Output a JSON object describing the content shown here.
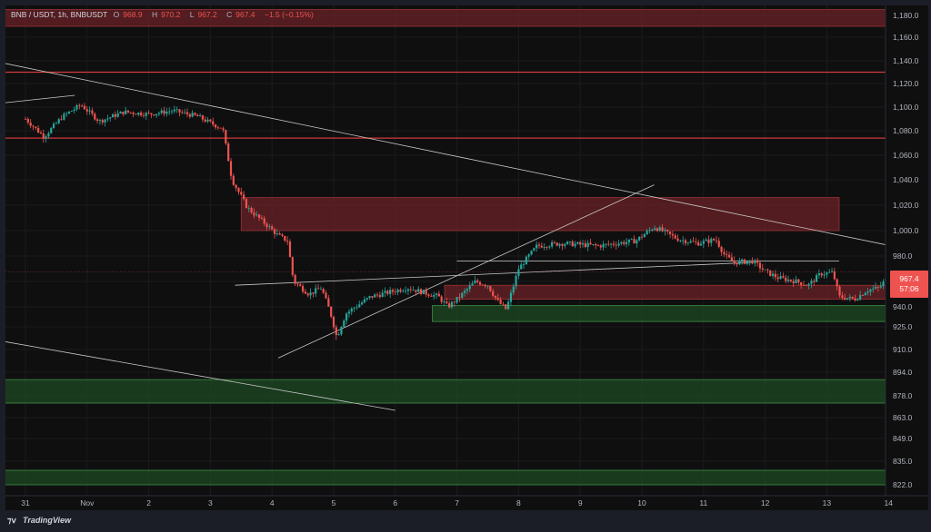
{
  "header": {
    "symbol": "BNB / USDT, 1h, BNBUSDT",
    "open_label": "O",
    "open": "968.9",
    "high_label": "H",
    "high": "970.2",
    "low_label": "L",
    "low": "967.2",
    "close_label": "C",
    "close": "967.4",
    "change": "−1.5 (−0.15%)"
  },
  "price_badge": {
    "price": "967.4",
    "countdown": "57:06"
  },
  "footer": {
    "brand": "TradingView"
  },
  "colors": {
    "background": "#0f0f10",
    "up": "#26a69a",
    "down": "#ef5350",
    "supply_zone": "#6b2226",
    "demand_zone": "#1f4a22",
    "red_line": "#d23a3a",
    "trendline": "#c8c8c8"
  },
  "chart_data": {
    "type": "candlestick",
    "timeframe": "1h",
    "x_ticks": [
      "31",
      "Nov",
      "2",
      "3",
      "4",
      "5",
      "6",
      "7",
      "8",
      "9",
      "10",
      "11",
      "12",
      "13",
      "14"
    ],
    "y_ticks": [
      "1,180.0",
      "1,160.0",
      "1,140.0",
      "1,120.0",
      "1,100.0",
      "1,080.0",
      "1,060.0",
      "1,040.0",
      "1,020.0",
      "1,000.0",
      "980.0",
      "960.0",
      "940.0",
      "925.0",
      "910.0",
      "894.0",
      "878.0",
      "863.0",
      "849.0",
      "835.0",
      "822.0"
    ],
    "last_price": 967.4,
    "price_path": [
      {
        "x": 31.0,
        "y": 1090
      },
      {
        "x": 31.3,
        "y": 1075
      },
      {
        "x": 31.6,
        "y": 1092
      },
      {
        "x": 31.9,
        "y": 1102
      },
      {
        "x": 32.2,
        "y": 1088
      },
      {
        "x": 32.6,
        "y": 1096
      },
      {
        "x": 33.0,
        "y": 1094
      },
      {
        "x": 33.4,
        "y": 1097
      },
      {
        "x": 33.8,
        "y": 1092
      },
      {
        "x": 34.1,
        "y": 1084
      },
      {
        "x": 34.2,
        "y": 1082
      },
      {
        "x": 34.35,
        "y": 1040
      },
      {
        "x": 34.6,
        "y": 1018
      },
      {
        "x": 34.9,
        "y": 1005
      },
      {
        "x": 35.1,
        "y": 996
      },
      {
        "x": 35.25,
        "y": 992
      },
      {
        "x": 35.35,
        "y": 960
      },
      {
        "x": 35.6,
        "y": 950
      },
      {
        "x": 35.8,
        "y": 955
      },
      {
        "x": 35.95,
        "y": 935
      },
      {
        "x": 36.05,
        "y": 918
      },
      {
        "x": 36.2,
        "y": 935
      },
      {
        "x": 36.6,
        "y": 948
      },
      {
        "x": 37.2,
        "y": 955
      },
      {
        "x": 37.7,
        "y": 948
      },
      {
        "x": 37.85,
        "y": 940
      },
      {
        "x": 38.0,
        "y": 946
      },
      {
        "x": 38.3,
        "y": 960
      },
      {
        "x": 38.5,
        "y": 957
      },
      {
        "x": 38.65,
        "y": 945
      },
      {
        "x": 38.8,
        "y": 938
      },
      {
        "x": 39.0,
        "y": 970
      },
      {
        "x": 39.3,
        "y": 988
      },
      {
        "x": 39.7,
        "y": 990
      },
      {
        "x": 40.3,
        "y": 988
      },
      {
        "x": 40.9,
        "y": 992
      },
      {
        "x": 41.2,
        "y": 1003
      },
      {
        "x": 41.6,
        "y": 993
      },
      {
        "x": 41.9,
        "y": 990
      },
      {
        "x": 42.2,
        "y": 993
      },
      {
        "x": 42.35,
        "y": 980
      },
      {
        "x": 42.5,
        "y": 975
      },
      {
        "x": 42.8,
        "y": 976
      },
      {
        "x": 43.0,
        "y": 968
      },
      {
        "x": 43.2,
        "y": 963
      },
      {
        "x": 43.5,
        "y": 960
      },
      {
        "x": 43.7,
        "y": 957
      },
      {
        "x": 43.9,
        "y": 966
      },
      {
        "x": 44.1,
        "y": 967
      },
      {
        "x": 44.2,
        "y": 948
      },
      {
        "x": 44.45,
        "y": 946
      },
      {
        "x": 44.65,
        "y": 953
      },
      {
        "x": 44.85,
        "y": 955
      },
      {
        "x": 45.0,
        "y": 964
      },
      {
        "x": 45.1,
        "y": 967.4
      }
    ],
    "zones": [
      {
        "kind": "supply",
        "y1": 1170,
        "y2": 1185,
        "x1": 30.0,
        "x2": 45.8
      },
      {
        "kind": "supply",
        "y1": 1000,
        "y2": 1026,
        "x1": 34.5,
        "x2": 44.2
      },
      {
        "kind": "supply",
        "y1": 946,
        "y2": 957,
        "x1": 37.8,
        "x2": 45.8
      },
      {
        "kind": "demand",
        "y1": 929,
        "y2": 941,
        "x1": 37.6,
        "x2": 45.8
      },
      {
        "kind": "demand",
        "y1": 873,
        "y2": 889,
        "x1": 30.0,
        "x2": 45.8
      },
      {
        "kind": "demand",
        "y1": 822,
        "y2": 830,
        "x1": 30.0,
        "x2": 45.8
      }
    ],
    "horizontal_lines": [
      {
        "y": 1130,
        "color": "red"
      },
      {
        "y": 1074,
        "color": "red"
      },
      {
        "y": 976,
        "color": "grey",
        "x1": 38.0,
        "x2": 44.2
      }
    ],
    "trendlines": [
      {
        "x1": 30.0,
        "y1": 1145,
        "x2": 45.8,
        "y2": 983
      },
      {
        "x1": 30.0,
        "y1": 920,
        "x2": 37.0,
        "y2": 868
      },
      {
        "x1": 30.0,
        "y1": 1100,
        "x2": 31.8,
        "y2": 1110
      },
      {
        "x1": 34.4,
        "y1": 957,
        "x2": 42.8,
        "y2": 975
      },
      {
        "x1": 35.1,
        "y1": 904,
        "x2": 41.2,
        "y2": 1036
      }
    ]
  }
}
